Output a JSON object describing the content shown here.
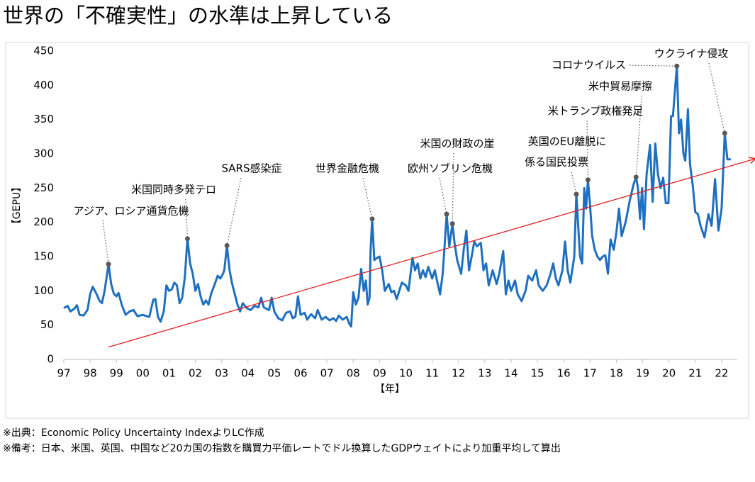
{
  "chart_data": {
    "type": "line",
    "title": "世界の「不確実性」の水準は上昇している",
    "ylabel": "【GEPU】",
    "xlabel": "【年】",
    "color": "#1f6fbf",
    "xlim": [
      1997,
      2023
    ],
    "ylim": [
      0,
      450
    ],
    "yticks": [
      0,
      50,
      100,
      150,
      200,
      250,
      300,
      350,
      400,
      450
    ],
    "xticks": [
      {
        "value": 1997,
        "label": "97"
      },
      {
        "value": 1998,
        "label": "98"
      },
      {
        "value": 1999,
        "label": "99"
      },
      {
        "value": 2000,
        "label": "00"
      },
      {
        "value": 2001,
        "label": "01"
      },
      {
        "value": 2002,
        "label": "02"
      },
      {
        "value": 2003,
        "label": "03"
      },
      {
        "value": 2004,
        "label": "04"
      },
      {
        "value": 2005,
        "label": "05"
      },
      {
        "value": 2006,
        "label": "06"
      },
      {
        "value": 2007,
        "label": "07"
      },
      {
        "value": 2008,
        "label": "08"
      },
      {
        "value": 2009,
        "label": "09"
      },
      {
        "value": 2010,
        "label": "10"
      },
      {
        "value": 2011,
        "label": "11"
      },
      {
        "value": 2012,
        "label": "12"
      },
      {
        "value": 2013,
        "label": "13"
      },
      {
        "value": 2014,
        "label": "14"
      },
      {
        "value": 2015,
        "label": "15"
      },
      {
        "value": 2016,
        "label": "16"
      },
      {
        "value": 2017,
        "label": "17"
      },
      {
        "value": 2018,
        "label": "18"
      },
      {
        "value": 2019,
        "label": "19"
      },
      {
        "value": 2020,
        "label": "20"
      },
      {
        "value": 2021,
        "label": "21"
      },
      {
        "value": 2022,
        "label": "22"
      }
    ],
    "x": [
      1997.0,
      1997.15,
      1997.25,
      1997.4,
      1997.5,
      1997.6,
      1997.75,
      1997.9,
      1998.0,
      1998.1,
      1998.25,
      1998.35,
      1998.45,
      1998.55,
      1998.62,
      1998.7,
      1998.8,
      1998.9,
      1999.0,
      1999.08,
      1999.2,
      1999.35,
      1999.5,
      1999.65,
      1999.8,
      2000.0,
      2000.15,
      2000.25,
      2000.4,
      2000.48,
      2000.58,
      2000.68,
      2000.8,
      2000.9,
      2001.0,
      2001.1,
      2001.2,
      2001.3,
      2001.4,
      2001.5,
      2001.6,
      2001.7,
      2001.8,
      2001.9,
      2002.0,
      2002.1,
      2002.2,
      2002.3,
      2002.4,
      2002.5,
      2002.6,
      2002.7,
      2002.85,
      2002.95,
      2003.05,
      2003.1,
      2003.2,
      2003.3,
      2003.4,
      2003.5,
      2003.6,
      2003.7,
      2003.8,
      2003.95,
      2004.1,
      2004.25,
      2004.4,
      2004.5,
      2004.6,
      2004.8,
      2004.9,
      2005.0,
      2005.15,
      2005.3,
      2005.45,
      2005.6,
      2005.7,
      2005.8,
      2005.9,
      2006.0,
      2006.15,
      2006.25,
      2006.4,
      2006.55,
      2006.65,
      2006.8,
      2006.95,
      2007.1,
      2007.25,
      2007.35,
      2007.45,
      2007.6,
      2007.75,
      2007.85,
      2007.92,
      2008.0,
      2008.1,
      2008.2,
      2008.3,
      2008.4,
      2008.48,
      2008.55,
      2008.62,
      2008.66,
      2008.72,
      2008.8,
      2008.9,
      2009.0,
      2009.1,
      2009.2,
      2009.35,
      2009.45,
      2009.55,
      2009.65,
      2009.75,
      2009.85,
      2010.0,
      2010.1,
      2010.25,
      2010.35,
      2010.45,
      2010.55,
      2010.65,
      2010.75,
      2010.85,
      2011.0,
      2011.1,
      2011.2,
      2011.3,
      2011.4,
      2011.48,
      2011.55,
      2011.65,
      2011.77,
      2011.85,
      2011.95,
      2012.1,
      2012.2,
      2012.3,
      2012.4,
      2012.5,
      2012.6,
      2012.7,
      2012.85,
      2012.95,
      2013.05,
      2013.15,
      2013.3,
      2013.45,
      2013.55,
      2013.7,
      2013.8,
      2013.9,
      2014.0,
      2014.15,
      2014.25,
      2014.4,
      2014.55,
      2014.65,
      2014.8,
      2014.95,
      2015.05,
      2015.2,
      2015.35,
      2015.5,
      2015.6,
      2015.7,
      2015.8,
      2015.95,
      2016.05,
      2016.15,
      2016.25,
      2016.4,
      2016.48,
      2016.55,
      2016.62,
      2016.7,
      2016.78,
      2016.85,
      2016.92,
      2017.0,
      2017.08,
      2017.18,
      2017.28,
      2017.38,
      2017.48,
      2017.58,
      2017.68,
      2017.78,
      2017.9,
      2018.0,
      2018.1,
      2018.2,
      2018.35,
      2018.5,
      2018.65,
      2018.75,
      2018.82,
      2018.9,
      2018.98,
      2019.05,
      2019.15,
      2019.28,
      2019.38,
      2019.48,
      2019.58,
      2019.68,
      2019.78,
      2019.88,
      2019.98,
      2020.08,
      2020.15,
      2020.3,
      2020.38,
      2020.46,
      2020.55,
      2020.62,
      2020.72,
      2020.8,
      2020.9,
      2021.0,
      2021.1,
      2021.2,
      2021.35,
      2021.5,
      2021.62,
      2021.75,
      2021.88,
      2022.0,
      2022.12,
      2022.22,
      2022.35
    ],
    "values": [
      75,
      78,
      70,
      74,
      79,
      65,
      64,
      72,
      95,
      106,
      95,
      86,
      82,
      100,
      118,
      139,
      110,
      96,
      92,
      97,
      80,
      65,
      70,
      72,
      63,
      65,
      63,
      62,
      87,
      88,
      62,
      55,
      70,
      108,
      100,
      102,
      112,
      108,
      82,
      90,
      120,
      176,
      140,
      125,
      100,
      110,
      92,
      80,
      86,
      80,
      96,
      106,
      122,
      118,
      125,
      130,
      166,
      130,
      110,
      95,
      80,
      70,
      82,
      75,
      72,
      78,
      76,
      90,
      76,
      72,
      90,
      70,
      60,
      57,
      68,
      70,
      60,
      62,
      92,
      65,
      68,
      58,
      66,
      60,
      72,
      58,
      62,
      57,
      60,
      56,
      64,
      58,
      62,
      52,
      48,
      98,
      80,
      90,
      132,
      100,
      115,
      80,
      90,
      160,
      205,
      145,
      148,
      150,
      130,
      100,
      110,
      98,
      100,
      88,
      100,
      112,
      108,
      100,
      148,
      130,
      140,
      118,
      130,
      120,
      135,
      118,
      130,
      112,
      95,
      125,
      170,
      212,
      165,
      198,
      170,
      145,
      125,
      160,
      188,
      130,
      150,
      172,
      165,
      170,
      130,
      140,
      108,
      130,
      110,
      125,
      158,
      95,
      115,
      100,
      115,
      95,
      85,
      100,
      122,
      115,
      130,
      108,
      100,
      108,
      125,
      140,
      118,
      108,
      130,
      172,
      130,
      112,
      150,
      241,
      195,
      150,
      140,
      250,
      220,
      262,
      225,
      180,
      160,
      150,
      145,
      150,
      152,
      125,
      175,
      160,
      185,
      220,
      180,
      200,
      230,
      255,
      266,
      250,
      205,
      250,
      190,
      270,
      313,
      230,
      315,
      270,
      250,
      265,
      228,
      228,
      355,
      355,
      428,
      330,
      350,
      300,
      290,
      365,
      285,
      255,
      215,
      212,
      195,
      178,
      212,
      195,
      263,
      188,
      220,
      330,
      292,
      292
    ],
    "trend": {
      "color": "#e02020",
      "x": [
        1998.7,
        2023.3
      ],
      "y": [
        18,
        293
      ]
    },
    "annotations": [
      {
        "text": [
          "アジア、ロシア通貨危機"
        ],
        "x": 1998.7,
        "y": 139
      },
      {
        "text": [
          "米国同時多発テロ"
        ],
        "x": 2001.7,
        "y": 176
      },
      {
        "text": [
          "SARS感染症"
        ],
        "x": 2003.2,
        "y": 166
      },
      {
        "text": [
          "世界金融危機"
        ],
        "x": 2008.72,
        "y": 205
      },
      {
        "text": [
          "欧州ソブリン危機"
        ],
        "x": 2011.55,
        "y": 212
      },
      {
        "text": [
          "米国の財政の崖"
        ],
        "x": 2011.77,
        "y": 198
      },
      {
        "text": [
          "英国のEU離脱に",
          "係る国民投票"
        ],
        "x": 2016.48,
        "y": 241
      },
      {
        "text": [
          "米トランプ政権発足"
        ],
        "x": 2016.92,
        "y": 262
      },
      {
        "text": [
          "米中貿易摩擦"
        ],
        "x": 2018.75,
        "y": 266
      },
      {
        "text": [
          "コロナウイルス"
        ],
        "x": 2020.3,
        "y": 428
      },
      {
        "text": [
          "ウクライナ侵攻"
        ],
        "x": 2022.12,
        "y": 330
      }
    ],
    "notes": [
      "※出典：Economic Policy Uncertainty IndexよりLC作成",
      "※備考：日本、米国、英国、中国など20カ国の指数を購買力平価レートでドル換算したGDPウェイトにより加重平均して算出"
    ]
  }
}
